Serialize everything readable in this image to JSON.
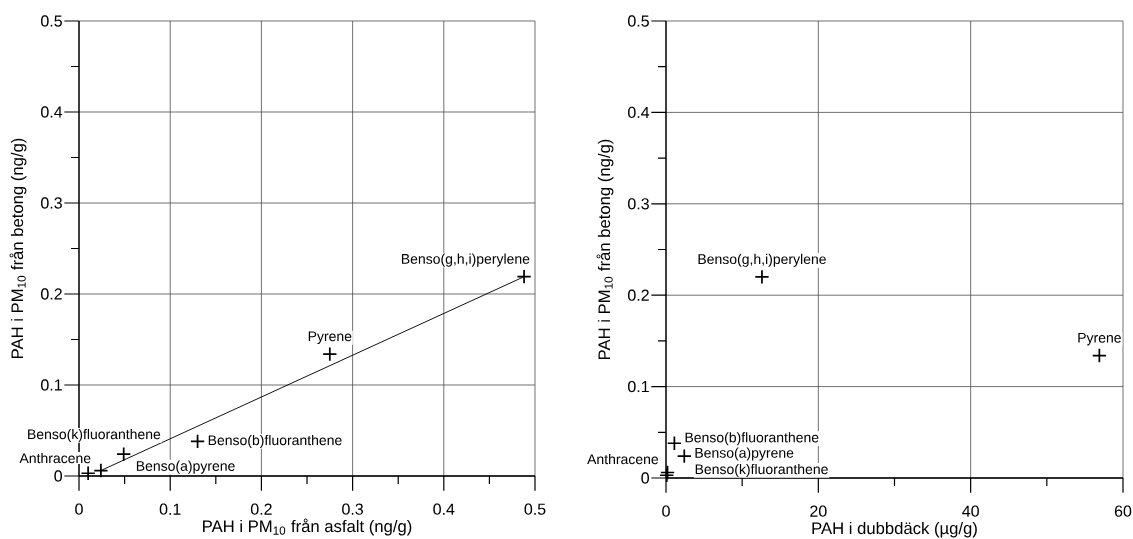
{
  "chart_data": [
    {
      "type": "scatter",
      "xlabel": "PAH i PM$_{10}$ från asfalt (ng/g)",
      "ylabel": "PAH i PM$_{10}$ från betong (ng/g)",
      "xlim": [
        0,
        0.5
      ],
      "ylim": [
        0,
        0.5
      ],
      "xticks": [
        0,
        {
          "value": 0.05,
          "label": null
        },
        0.1,
        {
          "value": 0.15,
          "label": null
        },
        0.2,
        {
          "value": 0.25,
          "label": null
        },
        0.3,
        {
          "value": 0.35,
          "label": null
        },
        0.4,
        {
          "value": 0.45,
          "label": null
        },
        0.5
      ],
      "yticks": [
        0,
        {
          "value": 0.05,
          "label": null
        },
        0.1,
        {
          "value": 0.15,
          "label": null
        },
        0.2,
        {
          "value": 0.25,
          "label": null
        },
        0.3,
        {
          "value": 0.35,
          "label": null
        },
        0.4,
        {
          "value": 0.45,
          "label": null
        },
        0.5
      ],
      "grid": true,
      "series": [
        {
          "type": "scatter",
          "color": "#000000",
          "marker": "cross",
          "x": [
            0.01,
            0.024,
            0.049,
            0.13,
            0.275,
            0.488
          ],
          "values": [
            0.003,
            0.006,
            0.024,
            0.038,
            0.134,
            0.219
          ]
        },
        {
          "type": "line",
          "color": "#000000",
          "marker": "none",
          "x": [
            0.024,
            0.488
          ],
          "values": [
            0.006,
            0.219
          ]
        }
      ],
      "annotations": [
        {
          "text": "Anthracene",
          "x": 0.01,
          "y": 0.003
        },
        {
          "text": "Benso(k)fluoranthene",
          "x": 0.024,
          "y": 0.006
        },
        {
          "text": "Benso(a)pyrene",
          "x": 0.049,
          "y": 0.024
        },
        {
          "text": "Benso(b)fluoranthene",
          "x": 0.13,
          "y": 0.038
        },
        {
          "text": "Pyrene",
          "x": 0.275,
          "y": 0.134
        },
        {
          "text": "Benso(g,h,i)perylene",
          "x": 0.488,
          "y": 0.219
        }
      ]
    },
    {
      "type": "scatter",
      "xlabel": "PAH i dubbdäck (µg/g)",
      "ylabel": "PAH i PM$_{10}$ från betong (ng/g)",
      "xlim": [
        0,
        60
      ],
      "ylim": [
        0,
        0.5
      ],
      "xticks": [
        0,
        {
          "value": 10,
          "label": null
        },
        20,
        {
          "value": 30,
          "label": null
        },
        40,
        {
          "value": 50,
          "label": null
        },
        60
      ],
      "yticks": [
        0,
        {
          "value": 0.05,
          "label": null
        },
        0.1,
        {
          "value": 0.15,
          "label": null
        },
        0.2,
        {
          "value": 0.25,
          "label": null
        },
        0.3,
        {
          "value": 0.35,
          "label": null
        },
        0.4,
        {
          "value": 0.45,
          "label": null
        },
        0.5
      ],
      "grid": true,
      "series": [
        {
          "type": "scatter",
          "color": "#000000",
          "marker": "cross",
          "x": [
            0.1,
            0.2,
            2.4,
            1.1,
            56.9,
            12.6
          ],
          "values": [
            0.003,
            0.006,
            0.024,
            0.038,
            0.134,
            0.22
          ]
        }
      ],
      "annotations": [
        {
          "text": "Anthracene",
          "x": 0.1,
          "y": 0.003
        },
        {
          "text": "Benso(k)fluoranthene",
          "x": 0.2,
          "y": 0.006
        },
        {
          "text": "Benso(a)pyrene",
          "x": 2.4,
          "y": 0.024
        },
        {
          "text": "Benso(b)fluoranthene",
          "x": 1.1,
          "y": 0.038
        },
        {
          "text": "Pyrene",
          "x": 56.9,
          "y": 0.134
        },
        {
          "text": "Benso(g,h,i)perylene",
          "x": 12.6,
          "y": 0.22
        }
      ]
    }
  ]
}
